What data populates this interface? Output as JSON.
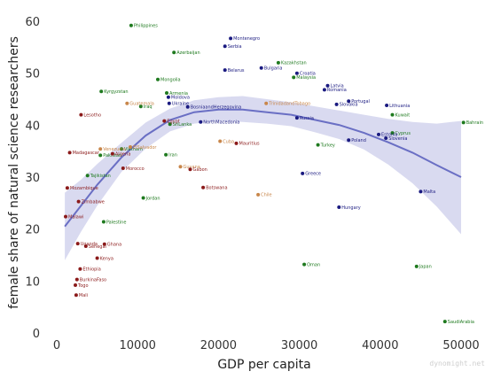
{
  "chart_data": {
    "type": "scatter",
    "xlabel": "GDP per capita",
    "ylabel": "female share of natural science researchers",
    "xlim": [
      -2000,
      52500
    ],
    "ylim": [
      0,
      63
    ],
    "xticks": [
      0,
      10000,
      20000,
      30000,
      40000,
      50000
    ],
    "yticks": [
      0,
      10,
      20,
      30,
      40,
      50,
      60
    ],
    "grid": false,
    "credit": "dynomight.net",
    "colors": {
      "africa": "#8b1a1a",
      "asia": "#1f7a1f",
      "europe": "#1a1a80",
      "americas": "#c8864a",
      "trend": "#6a6fc4",
      "band": "#d9daf0"
    },
    "series": [
      {
        "color_key": "asia",
        "points": [
          {
            "label": "Philippines",
            "x": 9200,
            "y": 59.2
          },
          {
            "label": "Azerbaijan",
            "x": 14500,
            "y": 54
          },
          {
            "label": "Kazakhstan",
            "x": 27400,
            "y": 52
          },
          {
            "label": "Malaysia",
            "x": 29300,
            "y": 49.2
          },
          {
            "label": "Mongolia",
            "x": 12500,
            "y": 48.8
          },
          {
            "label": "Kyrgyzstan",
            "x": 5500,
            "y": 46.5
          },
          {
            "label": "Armenia",
            "x": 13600,
            "y": 46.2
          },
          {
            "label": "Iraq",
            "x": 10400,
            "y": 43.6
          },
          {
            "label": "Kuwait",
            "x": 41500,
            "y": 42
          },
          {
            "label": "SriLanka",
            "x": 14000,
            "y": 40.2
          },
          {
            "label": "Bahrain",
            "x": 50300,
            "y": 40.5
          },
          {
            "label": "Cyprus",
            "x": 41500,
            "y": 38.5
          },
          {
            "label": "Vietnam",
            "x": 8000,
            "y": 35.4
          },
          {
            "label": "Turkey",
            "x": 32300,
            "y": 36.2
          },
          {
            "label": "Pakistan",
            "x": 5400,
            "y": 34.2
          },
          {
            "label": "Iran",
            "x": 13500,
            "y": 34.3
          },
          {
            "label": "Tajikistan",
            "x": 3800,
            "y": 30.3
          },
          {
            "label": "Jordan",
            "x": 10700,
            "y": 26
          },
          {
            "label": "Palestine",
            "x": 5800,
            "y": 21.4
          },
          {
            "label": "Oman",
            "x": 30600,
            "y": 13.2
          },
          {
            "label": "Japan",
            "x": 44500,
            "y": 12.8
          },
          {
            "label": "SaudiArabia",
            "x": 48000,
            "y": 2.2
          }
        ]
      },
      {
        "color_key": "europe",
        "points": [
          {
            "label": "Montenegro",
            "x": 21500,
            "y": 56.7
          },
          {
            "label": "Serbia",
            "x": 20800,
            "y": 55.2
          },
          {
            "label": "Belarus",
            "x": 20800,
            "y": 50.6
          },
          {
            "label": "Bulgaria",
            "x": 25300,
            "y": 51
          },
          {
            "label": "Croatia",
            "x": 29700,
            "y": 50
          },
          {
            "label": "Latvia",
            "x": 33500,
            "y": 47.6
          },
          {
            "label": "Romania",
            "x": 33100,
            "y": 46.8
          },
          {
            "label": "Moldova",
            "x": 13800,
            "y": 45.4
          },
          {
            "label": "Ukraine",
            "x": 13900,
            "y": 44.2
          },
          {
            "label": "Portugal",
            "x": 36100,
            "y": 44.6
          },
          {
            "label": "Slovakia",
            "x": 34600,
            "y": 44
          },
          {
            "label": "BosniaandHerzegovina",
            "x": 16200,
            "y": 43.5
          },
          {
            "label": "Lithuania",
            "x": 40800,
            "y": 43.8
          },
          {
            "label": "Russia",
            "x": 29700,
            "y": 41.4
          },
          {
            "label": "NorthMacedonia",
            "x": 17800,
            "y": 40.6
          },
          {
            "label": "Estonia",
            "x": 39800,
            "y": 38.2
          },
          {
            "label": "Slovenia",
            "x": 40700,
            "y": 37.5
          },
          {
            "label": "Poland",
            "x": 36100,
            "y": 37.1
          },
          {
            "label": "Greece",
            "x": 30400,
            "y": 30.7
          },
          {
            "label": "Malta",
            "x": 45000,
            "y": 27.2
          },
          {
            "label": "Hungary",
            "x": 34900,
            "y": 24.2
          }
        ]
      },
      {
        "color_key": "americas",
        "points": [
          {
            "label": "Guatemala",
            "x": 8700,
            "y": 44.2
          },
          {
            "label": "TrinidadandTobago",
            "x": 25900,
            "y": 44.2
          },
          {
            "label": "Cuba",
            "x": 20200,
            "y": 36.9
          },
          {
            "label": "Venezuela",
            "x": 5400,
            "y": 35.4
          },
          {
            "label": "ElSalvador",
            "x": 9100,
            "y": 35.8
          },
          {
            "label": "Guyana",
            "x": 15300,
            "y": 32
          },
          {
            "label": "Chile",
            "x": 24900,
            "y": 26.6
          }
        ]
      },
      {
        "color_key": "africa",
        "points": [
          {
            "label": "Lesotho",
            "x": 3000,
            "y": 42
          },
          {
            "label": "Egypt",
            "x": 13300,
            "y": 40.8
          },
          {
            "label": "Mauritius",
            "x": 22200,
            "y": 36.5
          },
          {
            "label": "Madagascar",
            "x": 1600,
            "y": 34.7
          },
          {
            "label": "Algeria",
            "x": 6900,
            "y": 34.5
          },
          {
            "label": "Morocco",
            "x": 8200,
            "y": 31.7
          },
          {
            "label": "Gabon",
            "x": 16500,
            "y": 31.5
          },
          {
            "label": "Mozambique",
            "x": 1300,
            "y": 27.9
          },
          {
            "label": "Botswana",
            "x": 18100,
            "y": 28
          },
          {
            "label": "Zimbabwe",
            "x": 2700,
            "y": 25.3
          },
          {
            "label": "Malawi",
            "x": 1100,
            "y": 22.4
          },
          {
            "label": "Uganda",
            "x": 2600,
            "y": 17.2
          },
          {
            "label": "Senegal",
            "x": 3600,
            "y": 16.7
          },
          {
            "label": "Ghana",
            "x": 5900,
            "y": 17.1
          },
          {
            "label": "Kenya",
            "x": 5000,
            "y": 14.4
          },
          {
            "label": "Ethiopia",
            "x": 2900,
            "y": 12.3
          },
          {
            "label": "BurkinaFaso",
            "x": 2500,
            "y": 10.3
          },
          {
            "label": "Togo",
            "x": 2300,
            "y": 9.2
          },
          {
            "label": "Mali",
            "x": 2400,
            "y": 7.3
          }
        ]
      }
    ],
    "trend": {
      "x": [
        1000,
        3000,
        5000,
        8000,
        11000,
        14000,
        17000,
        20000,
        23000,
        26000,
        29000,
        32000,
        35000,
        38000,
        41000,
        44000,
        47000,
        50000
      ],
      "y": [
        20.5,
        24.5,
        28.5,
        33.8,
        38,
        41,
        42.5,
        43,
        43,
        42.5,
        42,
        41,
        40,
        38.5,
        36.7,
        34.7,
        32.3,
        30
      ],
      "band_lo": [
        14,
        19.5,
        24.5,
        31,
        35.5,
        38.8,
        40.3,
        40.8,
        40.6,
        40.3,
        39.8,
        38.6,
        37.3,
        35.3,
        32.4,
        28.8,
        24.3,
        19
      ],
      "band_hi": [
        27,
        29.5,
        32.5,
        36.6,
        40.5,
        43.2,
        44.8,
        45.4,
        45.6,
        45,
        44.4,
        43.6,
        42.8,
        42,
        41.2,
        40.6,
        40.3,
        40.8
      ]
    }
  }
}
